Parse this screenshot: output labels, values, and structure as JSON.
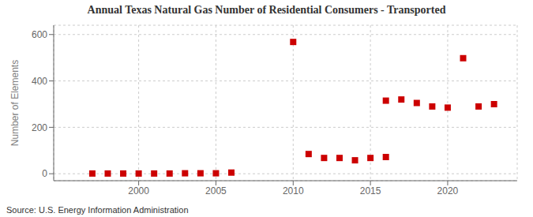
{
  "chart_data": {
    "type": "scatter",
    "title": "Annual Texas Natural Gas Number of Residential Consumers - Transported",
    "ylabel": "Number of Elements",
    "annotation": "Source: U.S. Energy Information Administration",
    "x": [
      1997,
      1998,
      1999,
      2000,
      2001,
      2002,
      2003,
      2004,
      2005,
      2006,
      2010,
      2011,
      2012,
      2013,
      2014,
      2015,
      2016,
      2016,
      2017,
      2018,
      2019,
      2020,
      2021,
      2022,
      2023
    ],
    "values": [
      1,
      1,
      1,
      1,
      1,
      1,
      2,
      2,
      2,
      5,
      568,
      85,
      68,
      68,
      58,
      68,
      72,
      315,
      320,
      305,
      290,
      285,
      498,
      290,
      300
    ],
    "color": "#cc0000",
    "marker": "square",
    "xlim": [
      1994.5,
      2024.5
    ],
    "ylim": [
      -30,
      640
    ],
    "xticks": [
      2000,
      2005,
      2010,
      2015,
      2020
    ],
    "yticks": [
      0,
      200,
      400,
      600
    ],
    "grid": true
  }
}
